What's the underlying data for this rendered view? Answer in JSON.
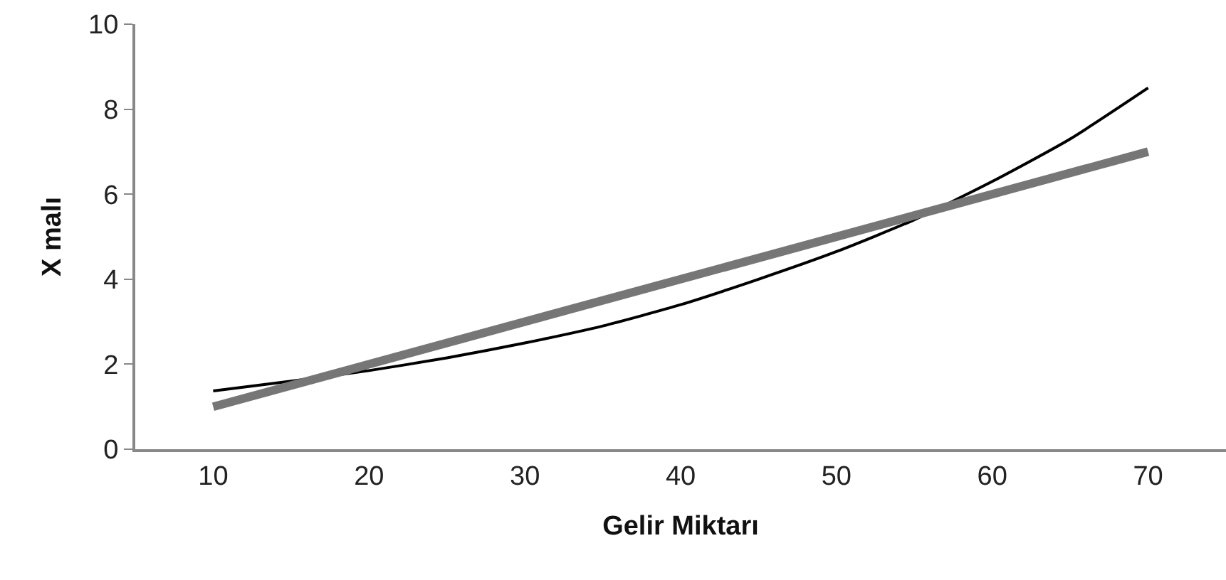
{
  "chart_data": {
    "type": "line",
    "xlabel": "Gelir Miktarı",
    "ylabel": "X malı",
    "xlim": [
      5,
      75
    ],
    "xticks": [
      10,
      20,
      30,
      40,
      50,
      60,
      70
    ],
    "ylim": [
      0,
      10
    ],
    "yticks": [
      0,
      2,
      4,
      6,
      8,
      10
    ],
    "grid": false,
    "marker": "none",
    "series": [
      {
        "color": "#000000",
        "x": [
          10,
          15,
          20,
          25,
          30,
          35,
          40,
          45,
          50,
          55,
          60,
          65,
          70
        ],
        "values": [
          1.37,
          1.6,
          1.85,
          2.15,
          2.5,
          2.9,
          3.4,
          4.0,
          4.65,
          5.4,
          6.3,
          7.3,
          8.5
        ]
      },
      {
        "color": "#767676",
        "x": [
          10,
          70
        ],
        "values": [
          1,
          7
        ]
      }
    ]
  }
}
